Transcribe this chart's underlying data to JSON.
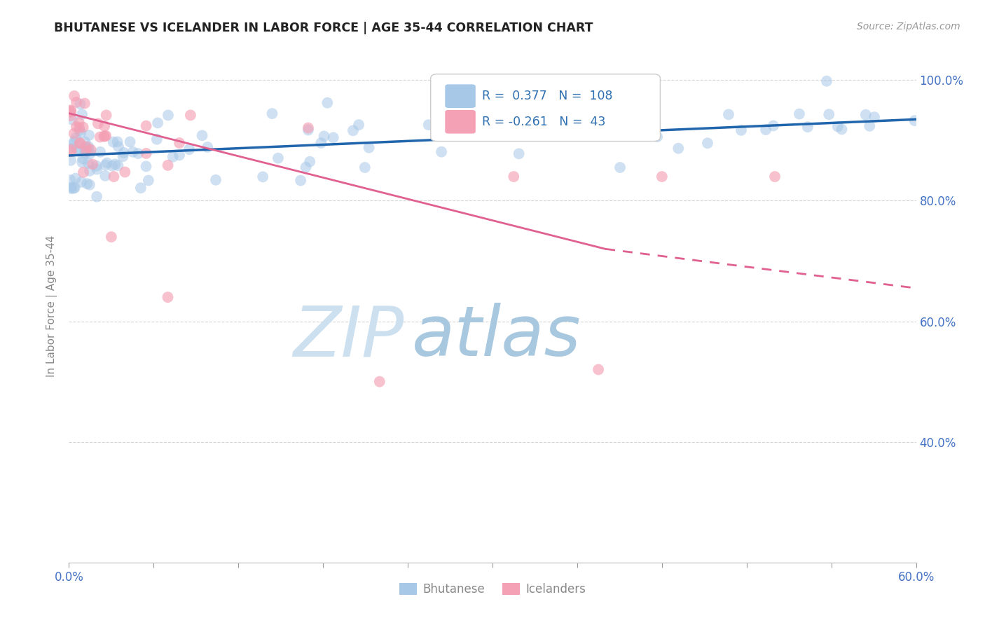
{
  "title": "BHUTANESE VS ICELANDER IN LABOR FORCE | AGE 35-44 CORRELATION CHART",
  "source_text": "Source: ZipAtlas.com",
  "ylabel": "In Labor Force | Age 35-44",
  "xlim": [
    0.0,
    0.6
  ],
  "ylim": [
    0.2,
    1.05
  ],
  "bhutanese_R": 0.377,
  "bhutanese_N": 108,
  "icelander_R": -0.261,
  "icelander_N": 43,
  "blue_color": "#a8c8e8",
  "blue_line_color": "#2166ac",
  "pink_color": "#f4a0b5",
  "pink_line_color": "#e06090",
  "watermark_zip_color": "#c8dff0",
  "watermark_atlas_color": "#a0c0e0",
  "blue_line_y0": 0.875,
  "blue_line_y1": 0.935,
  "pink_line_y0": 0.945,
  "pink_line_y1_solid": 0.72,
  "pink_line_x_solid": 0.38,
  "pink_line_y1_dash": 0.655,
  "seed_blue": 77,
  "seed_pink": 99
}
